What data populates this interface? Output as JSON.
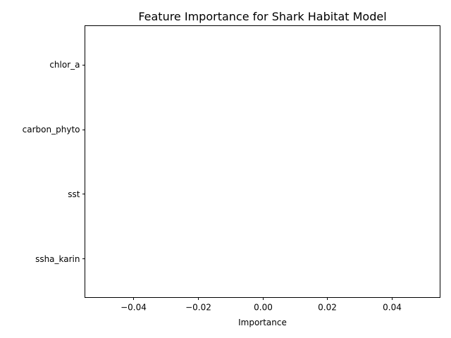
{
  "chart_data": {
    "type": "bar",
    "orientation": "horizontal",
    "title": "Feature Importance for Shark Habitat Model",
    "xlabel": "Importance",
    "ylabel": "",
    "categories": [
      "chlor_a",
      "carbon_phyto",
      "sst",
      "ssha_karin"
    ],
    "values": [
      0,
      0,
      0,
      0
    ],
    "xlim": [
      -0.055,
      0.055
    ],
    "xticks": [
      -0.04,
      -0.02,
      0.0,
      0.02,
      0.04
    ],
    "xtick_labels": [
      "−0.04",
      "−0.02",
      "0.00",
      "0.02",
      "0.04"
    ],
    "grid": false,
    "bar_color": "#1f77b4"
  }
}
